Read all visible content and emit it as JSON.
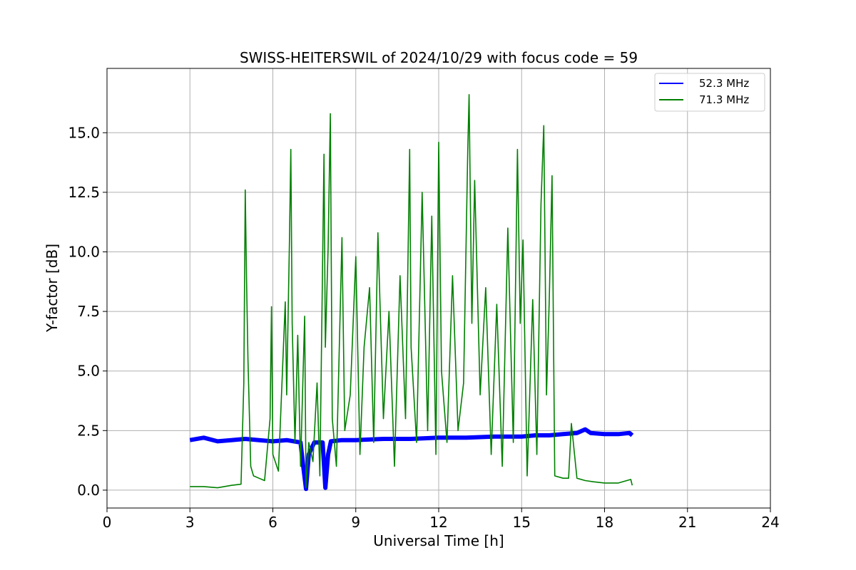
{
  "chart_data": {
    "type": "line",
    "title": "SWISS-HEITERSWIL of 2024/10/29 with focus code = 59",
    "xlabel": "Universal Time [h]",
    "ylabel": "Y-factor [dB]",
    "xlim": [
      0,
      24
    ],
    "ylim": [
      -0.75,
      17.7
    ],
    "xticks": [
      0,
      3,
      6,
      9,
      12,
      15,
      18,
      21,
      24
    ],
    "xtick_labels": [
      "0",
      "3",
      "6",
      "9",
      "12",
      "15",
      "18",
      "21",
      "24"
    ],
    "yticks": [
      0.0,
      2.5,
      5.0,
      7.5,
      10.0,
      12.5,
      15.0
    ],
    "ytick_labels": [
      "0.0",
      "2.5",
      "5.0",
      "7.5",
      "10.0",
      "12.5",
      "15.0"
    ],
    "grid": true,
    "legend_position": "top-right",
    "series": [
      {
        "name": "52.3 MHz",
        "color": "#0000ff",
        "x": [
          3.0,
          3.5,
          4.0,
          4.5,
          5.0,
          5.5,
          6.0,
          6.5,
          7.0,
          7.1,
          7.2,
          7.3,
          7.5,
          7.8,
          7.9,
          8.0,
          8.1,
          8.5,
          9.0,
          10.0,
          11.0,
          12.0,
          13.0,
          14.0,
          15.0,
          15.5,
          16.0,
          16.5,
          17.0,
          17.3,
          17.5,
          18.0,
          18.5,
          18.9,
          19.0
        ],
        "y": [
          2.1,
          2.2,
          2.05,
          2.1,
          2.15,
          2.1,
          2.05,
          2.1,
          2.0,
          1.0,
          0.05,
          1.5,
          2.0,
          2.0,
          0.1,
          1.5,
          2.05,
          2.1,
          2.1,
          2.15,
          2.15,
          2.2,
          2.2,
          2.25,
          2.25,
          2.3,
          2.3,
          2.35,
          2.4,
          2.55,
          2.4,
          2.35,
          2.35,
          2.4,
          2.3
        ]
      },
      {
        "name": "71.3 MHz",
        "color": "#008000",
        "x": [
          3.0,
          3.5,
          4.0,
          4.5,
          4.85,
          4.95,
          5.0,
          5.05,
          5.1,
          5.2,
          5.3,
          5.5,
          5.7,
          5.9,
          5.95,
          6.0,
          6.2,
          6.45,
          6.5,
          6.6,
          6.65,
          6.7,
          6.8,
          6.9,
          7.0,
          7.15,
          7.2,
          7.3,
          7.45,
          7.6,
          7.7,
          7.85,
          7.9,
          8.0,
          8.08,
          8.15,
          8.3,
          8.5,
          8.6,
          8.8,
          9.0,
          9.15,
          9.3,
          9.5,
          9.65,
          9.8,
          10.0,
          10.2,
          10.4,
          10.6,
          10.8,
          10.95,
          11.0,
          11.2,
          11.4,
          11.6,
          11.75,
          11.9,
          12.0,
          12.1,
          12.3,
          12.5,
          12.7,
          12.9,
          13.05,
          13.1,
          13.2,
          13.3,
          13.5,
          13.7,
          13.9,
          14.1,
          14.3,
          14.5,
          14.7,
          14.85,
          14.95,
          15.05,
          15.2,
          15.4,
          15.55,
          15.7,
          15.8,
          15.9,
          16.0,
          16.1,
          16.2,
          16.5,
          16.7,
          16.8,
          17.0,
          17.3,
          17.6,
          18.0,
          18.5,
          18.95,
          19.0
        ],
        "y": [
          0.15,
          0.15,
          0.1,
          0.2,
          0.25,
          4.5,
          12.6,
          8.7,
          5.5,
          1.0,
          0.6,
          0.5,
          0.4,
          3.0,
          7.7,
          1.5,
          0.8,
          7.9,
          4.0,
          10.5,
          14.3,
          7.0,
          2.0,
          6.5,
          1.0,
          7.3,
          0.1,
          2.0,
          1.2,
          4.5,
          0.6,
          14.1,
          6.0,
          10.2,
          15.8,
          3.0,
          1.0,
          10.6,
          2.5,
          4.0,
          9.8,
          1.5,
          6.0,
          8.5,
          2.0,
          10.8,
          3.0,
          7.5,
          1.0,
          9.0,
          3.0,
          14.3,
          6.0,
          2.0,
          12.5,
          2.5,
          11.5,
          1.5,
          14.6,
          5.0,
          2.0,
          9.0,
          2.5,
          4.5,
          14.2,
          16.6,
          7.0,
          13.0,
          4.0,
          8.5,
          1.5,
          7.8,
          1.0,
          11.0,
          2.0,
          14.3,
          7.0,
          10.5,
          0.6,
          8.0,
          1.5,
          12.0,
          15.3,
          4.0,
          8.0,
          13.2,
          0.6,
          0.5,
          0.5,
          2.8,
          0.5,
          0.4,
          0.35,
          0.3,
          0.3,
          0.45,
          0.2
        ]
      }
    ]
  }
}
